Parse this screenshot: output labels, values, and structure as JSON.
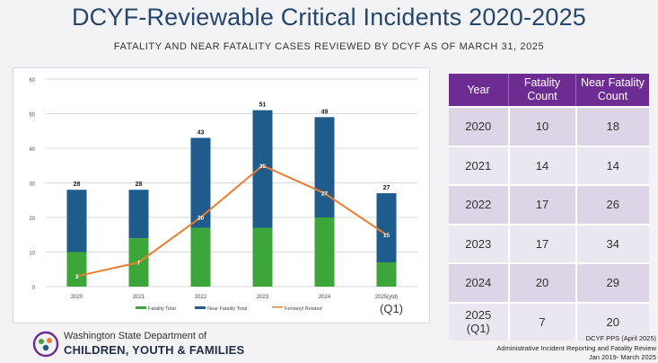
{
  "header": {
    "title": "DCYF-Reviewable Critical Incidents 2020-2025",
    "subtitle": "FATALITY AND NEAR FATALITY CASES REVIEWED BY DCYF AS OF MARCH 31, 2025"
  },
  "chart_data": {
    "type": "bar",
    "stacked": true,
    "categories": [
      "2020",
      "2021",
      "2022",
      "2023",
      "2024",
      "2025(ytd)"
    ],
    "series": [
      {
        "name": "Fatality Total",
        "color": "#3da63a",
        "values": [
          10,
          14,
          17,
          17,
          20,
          7
        ]
      },
      {
        "name": "Near Fatality Total",
        "color": "#1f5c8b",
        "values": [
          18,
          14,
          26,
          34,
          29,
          20
        ]
      }
    ],
    "totals": [
      28,
      28,
      43,
      51,
      49,
      27
    ],
    "line": {
      "name": "Fentanyl Related",
      "color": "#ee7c2e",
      "values": [
        3,
        7,
        20,
        35,
        27,
        15
      ]
    },
    "ylim": [
      0,
      60
    ],
    "yticks": [
      "0",
      "10",
      "20",
      "30",
      "40",
      "50",
      "60"
    ],
    "grid": true,
    "legend_position": "bottom",
    "category_note": "(Q1)"
  },
  "table": {
    "headers": [
      "Year",
      "Fatality Count",
      "Near Fatality Count"
    ],
    "rows": [
      {
        "year": "2020",
        "year_sub": "",
        "fatality": "10",
        "near": "18"
      },
      {
        "year": "2021",
        "year_sub": "",
        "fatality": "14",
        "near": "14"
      },
      {
        "year": "2022",
        "year_sub": "",
        "fatality": "17",
        "near": "26"
      },
      {
        "year": "2023",
        "year_sub": "",
        "fatality": "17",
        "near": "34"
      },
      {
        "year": "2024",
        "year_sub": "",
        "fatality": "20",
        "near": "29"
      },
      {
        "year": "2025",
        "year_sub": "(Q1)",
        "fatality": "7",
        "near": "20"
      }
    ]
  },
  "footer": {
    "org_line1": "Washington State Department of",
    "org_line2": "CHILDREN, YOUTH & FAMILIES",
    "notes": [
      "DCYF PPS (April 2025)",
      "Administrative Incident Reporting and Fatality Review",
      "Jan 2019- March 2025"
    ],
    "logo_colors": [
      "#6d2c91",
      "#3da63a",
      "#ee7c2e",
      "#1f5c8b"
    ]
  }
}
